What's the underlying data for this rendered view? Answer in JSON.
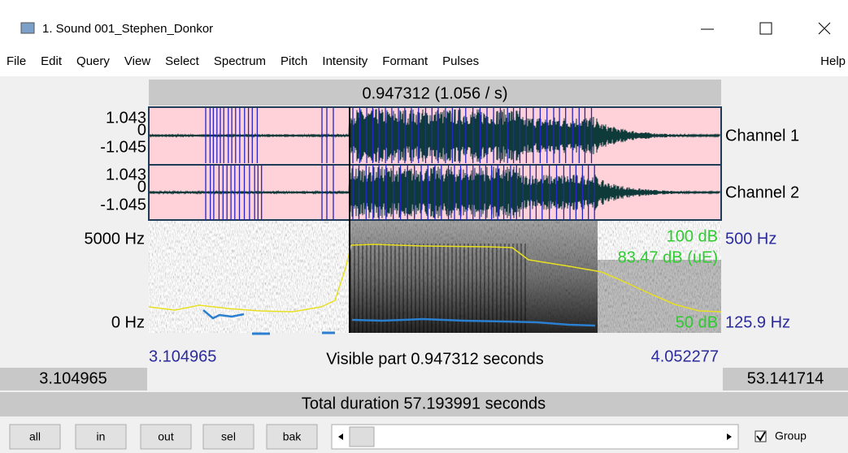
{
  "window": {
    "title": "1. Sound 001_Stephen_Donkor"
  },
  "menu": [
    "File",
    "Edit",
    "Query",
    "View",
    "Select",
    "Spectrum",
    "Pitch",
    "Intensity",
    "Formant",
    "Pulses",
    "Help"
  ],
  "editor": {
    "selection_label": "0.947312 (1.056 / s)",
    "channels": [
      {
        "name": "Channel 1",
        "max": "1.043",
        "zero": "0",
        "min": "-1.045"
      },
      {
        "name": "Channel 2",
        "max": "1.043",
        "zero": "0",
        "min": "-1.045"
      }
    ],
    "spectrogram": {
      "top_freq": "5000 Hz",
      "bottom_freq": "0 Hz",
      "intensity_top": "100 dB",
      "intensity_value": "83.47 dB (uE)",
      "intensity_bottom": "50 dB",
      "pitch_top": "500 Hz",
      "pitch_bottom": "125.9 Hz"
    },
    "visible_start": "3.104965",
    "visible_label": "Visible part 0.947312 seconds",
    "visible_end": "4.052277",
    "left_time": "3.104965",
    "right_time": "53.141714",
    "total_label": "Total duration 57.193991 seconds"
  },
  "buttons": [
    "all",
    "in",
    "out",
    "sel",
    "bak"
  ],
  "group_label": "Group"
}
